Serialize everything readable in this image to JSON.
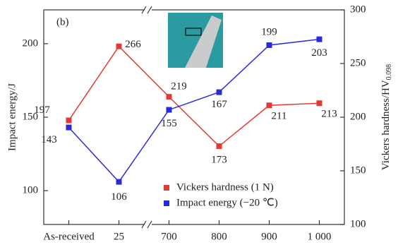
{
  "chart_data": {
    "type": "line",
    "annotation": "(b)",
    "categories": [
      "As-received",
      "25",
      "700",
      "800",
      "900",
      "1 000"
    ],
    "series": [
      {
        "name": "Vickers hardness (1 N)",
        "color": "#e43a36",
        "axis": "y2",
        "values": [
          197,
          266,
          219,
          173,
          211,
          213
        ]
      },
      {
        "name": "Impact energy (−20 ℃)",
        "color": "#2b2bd6",
        "values": [
          143,
          106,
          155,
          167,
          199,
          203
        ]
      }
    ],
    "ylabel": "Impact energy/J",
    "ylim": [
      77,
      223
    ],
    "yticks": [
      100,
      150,
      200
    ],
    "y2label": "Vickers hardness/HV",
    "y2label_sub": "0.098",
    "y2lim": [
      100,
      300
    ],
    "y2ticks": [
      100,
      150,
      200,
      250,
      300
    ],
    "legend": "lower center"
  }
}
